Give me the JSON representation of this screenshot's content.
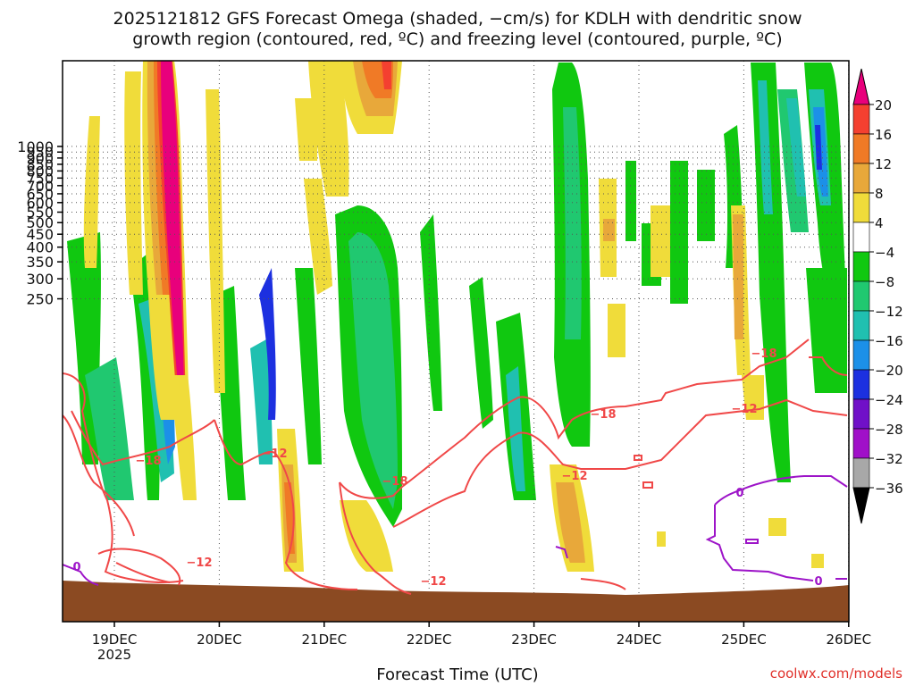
{
  "title_line1": "2025121812 GFS Forecast Omega (shaded, −cm/s) for KDLH with dendritic snow",
  "title_line2": "growth region (contoured, red, ºC) and freezing level (contoured, purple, ºC)",
  "xlabel": "Forecast Time (UTC)",
  "credit": "coolwx.com/models",
  "chart_data": {
    "type": "heatmap",
    "y_axis": {
      "ticks": [
        250,
        300,
        350,
        400,
        450,
        500,
        550,
        600,
        650,
        700,
        750,
        800,
        850,
        900,
        950,
        1000
      ],
      "scale": "log-pressure",
      "inverted": true
    },
    "x_axis": {
      "ticks": [
        "19DEC",
        "20DEC",
        "21DEC",
        "22DEC",
        "23DEC",
        "24DEC",
        "25DEC",
        "26DEC"
      ],
      "sub_label": "2025"
    },
    "colorbar": {
      "labels": [
        "20",
        "16",
        "12",
        "8",
        "4",
        "−4",
        "−8",
        "−12",
        "−16",
        "−20",
        "−24",
        "−28",
        "−32",
        "−36"
      ],
      "colors": [
        "#e8007c",
        "#f44030",
        "#f07a26",
        "#e8a83a",
        "#f0dc3a",
        "#ffffff",
        "#10c810",
        "#20c870",
        "#20c0b0",
        "#1c90e8",
        "#1c30e0",
        "#7010c8",
        "#a010c8",
        "#a8a8a8",
        "#000000"
      ]
    },
    "contour_labels_red": [
      "−18",
      "−12",
      "−18",
      "−12",
      "−18",
      "−12",
      "−12",
      "−18",
      "−12"
    ],
    "contour_labels_purple": [
      "0",
      "0",
      "0"
    ],
    "grid": "dotted",
    "ground_color": "#8b4a22"
  }
}
